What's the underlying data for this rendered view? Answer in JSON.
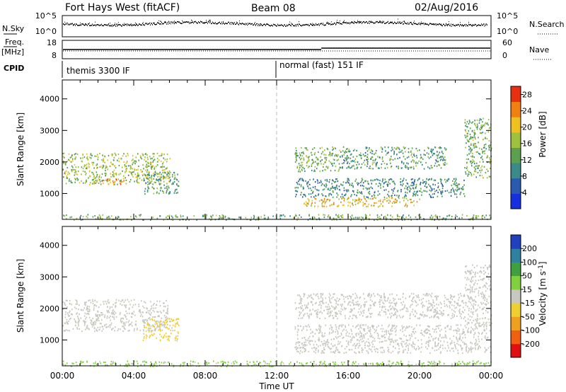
{
  "header": {
    "station": "Fort Hays West (fitACF)",
    "beam": "Beam 08",
    "date": "02/Aug/2016"
  },
  "noise_panel": {
    "left_label": "N.Sky",
    "left_ticks": [
      "10^5",
      "10^0"
    ],
    "right_ticks": [
      "10^5",
      "10^0"
    ],
    "right_label": "N.Search"
  },
  "freq_panel": {
    "left_label_1": "Freq.",
    "left_label_2": "[MHz]",
    "left_ticks": [
      "18",
      "8"
    ],
    "right_ticks": [
      "60",
      "0"
    ],
    "right_label": "Nave"
  },
  "cpid_panel": {
    "label": "CPID",
    "modes": [
      {
        "text": "themis 3300 IF",
        "start_hour": 0
      },
      {
        "text": "normal (fast) 151 IF",
        "start_hour": 12
      }
    ]
  },
  "time_axis": {
    "title": "Time UT",
    "ticks": [
      "00:00",
      "04:00",
      "08:00",
      "12:00",
      "16:00",
      "20:00",
      "00:00"
    ]
  },
  "chart_data": [
    {
      "type": "heatmap",
      "name": "power",
      "x_unit": "hours UT",
      "xlim": [
        0,
        24
      ],
      "ylabel": "Slant Range [km]",
      "ylim": [
        180,
        4600
      ],
      "y_ticks": [
        "1000",
        "2000",
        "3000",
        "4000"
      ],
      "colorbar": {
        "label": "Power [dB]",
        "ticks": [
          "4",
          "8",
          "12",
          "16",
          "20",
          "24",
          "28"
        ],
        "range": [
          0,
          30
        ],
        "colors": [
          "#1530e0",
          "#2a5ab0",
          "#3a8a8a",
          "#5aa050",
          "#a0c040",
          "#f0c020",
          "#f08010",
          "#e83010"
        ]
      },
      "echo_regions": [
        {
          "t": [
            0.0,
            6.0
          ],
          "range_km": [
            1300,
            2300
          ],
          "value_db": 16
        },
        {
          "t": [
            2.0,
            3.5
          ],
          "range_km": [
            1300,
            1500
          ],
          "value_db": 24
        },
        {
          "t": [
            4.5,
            6.5
          ],
          "range_km": [
            1000,
            1700
          ],
          "value_db": 12
        },
        {
          "t": [
            0.0,
            24.0
          ],
          "range_km": [
            180,
            350
          ],
          "value_db": 14
        },
        {
          "t": [
            13.5,
            20.0
          ],
          "range_km": [
            600,
            900
          ],
          "value_db": 20
        },
        {
          "t": [
            13.0,
            22.5
          ],
          "range_km": [
            900,
            1500
          ],
          "value_db": 10
        },
        {
          "t": [
            13.0,
            15.5
          ],
          "range_km": [
            1700,
            2500
          ],
          "value_db": 14
        },
        {
          "t": [
            15.5,
            21.5
          ],
          "range_km": [
            1800,
            2500
          ],
          "value_db": 12
        },
        {
          "t": [
            22.5,
            24.0
          ],
          "range_km": [
            1500,
            3400
          ],
          "value_db": 14
        }
      ]
    },
    {
      "type": "heatmap",
      "name": "velocity",
      "x_unit": "hours UT",
      "xlim": [
        0,
        24
      ],
      "ylabel": "Slant Range [km]",
      "ylim": [
        180,
        4600
      ],
      "y_ticks": [
        "1000",
        "2000",
        "3000",
        "4000"
      ],
      "colorbar": {
        "label": "Velocity [m s^-1]",
        "ticks": [
          "200",
          "100",
          "50",
          "15",
          "-15",
          "-50",
          "-100",
          "-200"
        ],
        "range": [
          -250,
          250
        ],
        "colors": [
          "#e01010",
          "#f06010",
          "#f0a020",
          "#f0d030",
          "#c8c8c0",
          "#80d040",
          "#40a040",
          "#3080a0",
          "#2040c0"
        ]
      },
      "echo_regions": [
        {
          "t": [
            0.0,
            6.0
          ],
          "range_km": [
            1300,
            2300
          ],
          "value_ms": 0
        },
        {
          "t": [
            4.5,
            6.5
          ],
          "range_km": [
            1000,
            1700
          ],
          "value_ms": -40
        },
        {
          "t": [
            0.0,
            24.0
          ],
          "range_km": [
            180,
            350
          ],
          "value_ms": 40
        },
        {
          "t": [
            13.0,
            24.0
          ],
          "range_km": [
            600,
            1500
          ],
          "value_ms": 0
        },
        {
          "t": [
            13.0,
            22.5
          ],
          "range_km": [
            1700,
            2500
          ],
          "value_ms": 0
        },
        {
          "t": [
            22.5,
            24.0
          ],
          "range_km": [
            1500,
            3400
          ],
          "value_ms": 0
        }
      ]
    }
  ],
  "colors": {
    "ground_scatter": "#c8c8c0",
    "axis": "#000000"
  }
}
